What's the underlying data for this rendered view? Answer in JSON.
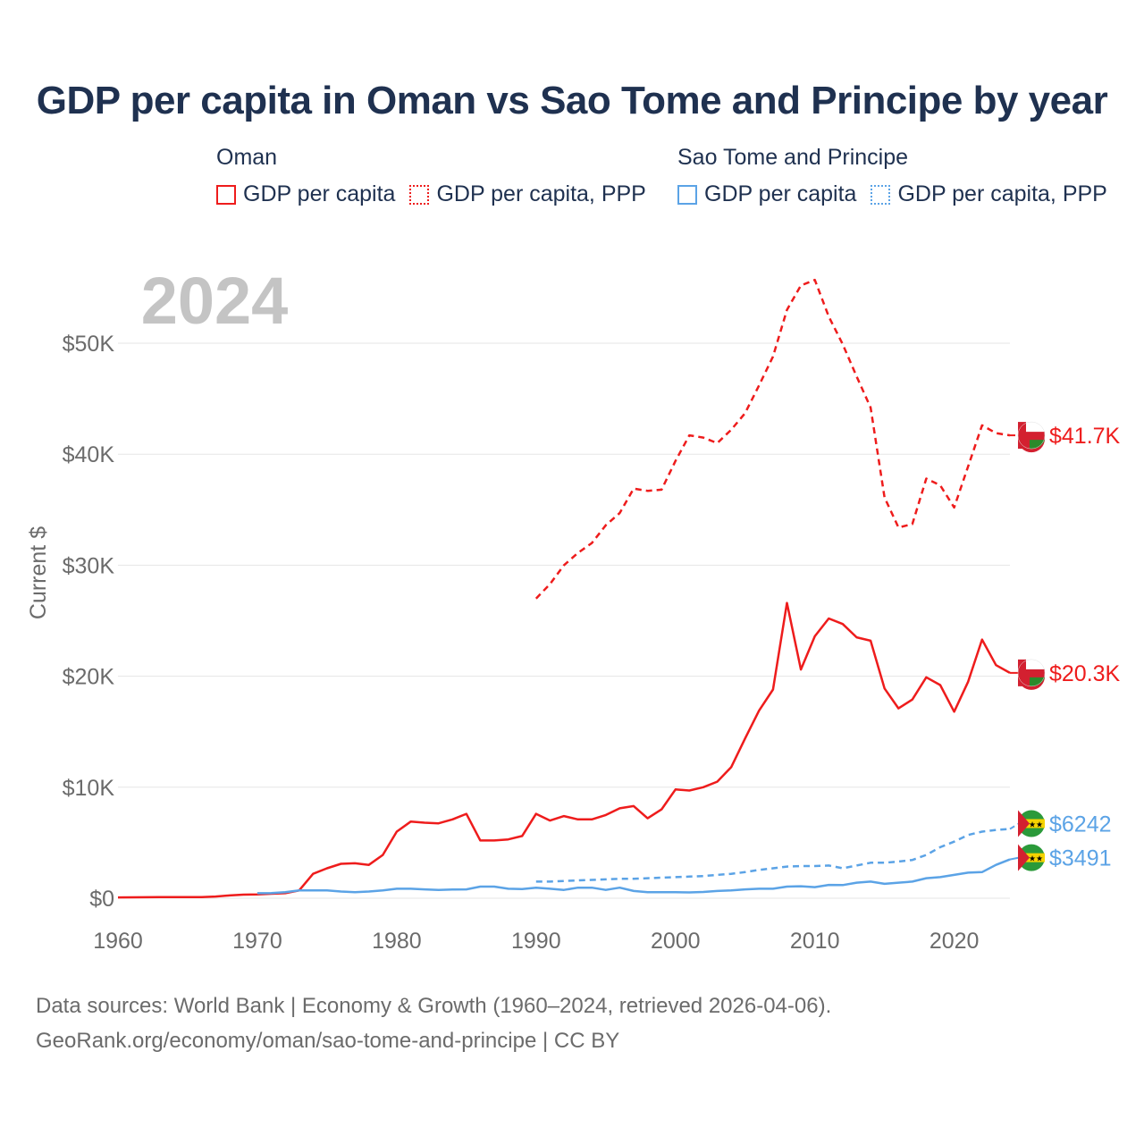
{
  "chart_data": {
    "type": "line",
    "title": "GDP per capita in Oman vs Sao Tome and Principe by year",
    "year_label": "2024",
    "ylabel": "Current $",
    "xlabel": "",
    "xlim": [
      1960,
      2024
    ],
    "ylim": [
      0,
      55000
    ],
    "x_ticks": [
      1960,
      1970,
      1980,
      1990,
      2000,
      2010,
      2020
    ],
    "x_tick_labels": [
      "1960",
      "1970",
      "1980",
      "1990",
      "2000",
      "2010",
      "2020"
    ],
    "y_ticks": [
      0,
      10000,
      20000,
      30000,
      40000,
      50000
    ],
    "y_tick_labels": [
      "$0",
      "$10K",
      "$20K",
      "$30K",
      "$40K",
      "$50K"
    ],
    "legend_groups": [
      {
        "name": "Oman",
        "color": "#ee1c1c",
        "items": [
          {
            "label": "GDP per capita",
            "style": "solid"
          },
          {
            "label": "GDP per capita, PPP",
            "style": "dotted"
          }
        ]
      },
      {
        "name": "Sao Tome and Principe",
        "color": "#5ba3e6",
        "items": [
          {
            "label": "GDP per capita",
            "style": "solid"
          },
          {
            "label": "GDP per capita, PPP",
            "style": "dotted"
          }
        ]
      }
    ],
    "series": [
      {
        "name": "Oman GDP per capita",
        "country": "Oman",
        "color": "#ee1c1c",
        "dash": "solid",
        "end_label": "$20.3K",
        "x": [
          1960,
          1961,
          1962,
          1963,
          1964,
          1965,
          1966,
          1967,
          1968,
          1969,
          1970,
          1971,
          1972,
          1973,
          1974,
          1975,
          1976,
          1977,
          1978,
          1979,
          1980,
          1981,
          1982,
          1983,
          1984,
          1985,
          1986,
          1987,
          1988,
          1989,
          1990,
          1991,
          1992,
          1993,
          1994,
          1995,
          1996,
          1997,
          1998,
          1999,
          2000,
          2001,
          2002,
          2003,
          2004,
          2005,
          2006,
          2007,
          2008,
          2009,
          2010,
          2011,
          2012,
          2013,
          2014,
          2015,
          2016,
          2017,
          2018,
          2019,
          2020,
          2021,
          2022,
          2023,
          2024
        ],
        "values": [
          70,
          80,
          90,
          100,
          100,
          100,
          100,
          150,
          250,
          320,
          350,
          400,
          450,
          700,
          2200,
          2700,
          3100,
          3150,
          3000,
          3900,
          6000,
          6900,
          6800,
          6750,
          7100,
          7600,
          5200,
          5200,
          5300,
          5600,
          7600,
          7000,
          7400,
          7100,
          7100,
          7500,
          8100,
          8300,
          7200,
          8000,
          9800,
          9700,
          10000,
          10500,
          11800,
          14400,
          16900,
          18800,
          26600,
          20600,
          23600,
          25200,
          24700,
          23500,
          23200,
          18900,
          17100,
          17900,
          19900,
          19200,
          16800,
          19500,
          23300,
          21000,
          20300
        ]
      },
      {
        "name": "Oman GDP per capita, PPP",
        "country": "Oman",
        "color": "#ee1c1c",
        "dash": "dashed",
        "end_label": "$41.7K",
        "x": [
          1990,
          1991,
          1992,
          1993,
          1994,
          1995,
          1996,
          1997,
          1998,
          1999,
          2000,
          2001,
          2002,
          2003,
          2004,
          2005,
          2006,
          2007,
          2008,
          2009,
          2010,
          2011,
          2012,
          2013,
          2014,
          2015,
          2016,
          2017,
          2018,
          2019,
          2020,
          2021,
          2022,
          2023,
          2024
        ],
        "values": [
          27000,
          28300,
          30000,
          31100,
          32000,
          33600,
          34700,
          36900,
          36700,
          36800,
          39400,
          41700,
          41500,
          41000,
          42200,
          43700,
          46200,
          48800,
          53000,
          55200,
          55700,
          52400,
          49900,
          47000,
          44200,
          36100,
          33400,
          33700,
          37800,
          37200,
          35200,
          38900,
          42600,
          41900,
          41700
        ]
      },
      {
        "name": "Sao Tome and Principe GDP per capita",
        "country": "Sao Tome and Principe",
        "color": "#5ba3e6",
        "dash": "solid",
        "end_label": "$3491",
        "x": [
          1970,
          1971,
          1972,
          1973,
          1974,
          1975,
          1976,
          1977,
          1978,
          1979,
          1980,
          1981,
          1982,
          1983,
          1984,
          1985,
          1986,
          1987,
          1988,
          1989,
          1990,
          1991,
          1992,
          1993,
          1994,
          1995,
          1996,
          1997,
          1998,
          1999,
          2000,
          2001,
          2002,
          2003,
          2004,
          2005,
          2006,
          2007,
          2008,
          2009,
          2010,
          2011,
          2012,
          2013,
          2014,
          2015,
          2016,
          2017,
          2018,
          2019,
          2020,
          2021,
          2022,
          2023,
          2024
        ],
        "values": [
          450,
          470,
          550,
          700,
          700,
          700,
          600,
          550,
          600,
          700,
          850,
          850,
          800,
          750,
          780,
          800,
          1050,
          1050,
          850,
          820,
          950,
          850,
          750,
          950,
          950,
          750,
          950,
          650,
          550,
          550,
          550,
          520,
          560,
          650,
          700,
          800,
          850,
          850,
          1050,
          1080,
          1000,
          1200,
          1180,
          1400,
          1500,
          1300,
          1400,
          1500,
          1800,
          1900,
          2100,
          2300,
          2350,
          3000,
          3491
        ]
      },
      {
        "name": "Sao Tome and Principe GDP per capita, PPP",
        "country": "Sao Tome and Principe",
        "color": "#5ba3e6",
        "dash": "dashed",
        "end_label": "$6242",
        "x": [
          1990,
          1991,
          1992,
          1993,
          1994,
          1995,
          1996,
          1997,
          1998,
          1999,
          2000,
          2001,
          2002,
          2003,
          2004,
          2005,
          2006,
          2007,
          2008,
          2009,
          2010,
          2011,
          2012,
          2013,
          2014,
          2015,
          2016,
          2017,
          2018,
          2019,
          2020,
          2021,
          2022,
          2023,
          2024
        ],
        "values": [
          1500,
          1500,
          1550,
          1600,
          1650,
          1700,
          1750,
          1750,
          1800,
          1850,
          1900,
          1950,
          2000,
          2100,
          2200,
          2350,
          2550,
          2700,
          2850,
          2900,
          2900,
          2950,
          2700,
          2950,
          3200,
          3200,
          3300,
          3450,
          3900,
          4600,
          5100,
          5700,
          6000,
          6150,
          6242
        ]
      }
    ]
  },
  "source": {
    "line1": "Data sources: World Bank | Economy & Growth (1960–2024, retrieved 2026-04-06).",
    "line2": "GeoRank.org/economy/oman/sao-tome-and-principe | CC BY"
  }
}
